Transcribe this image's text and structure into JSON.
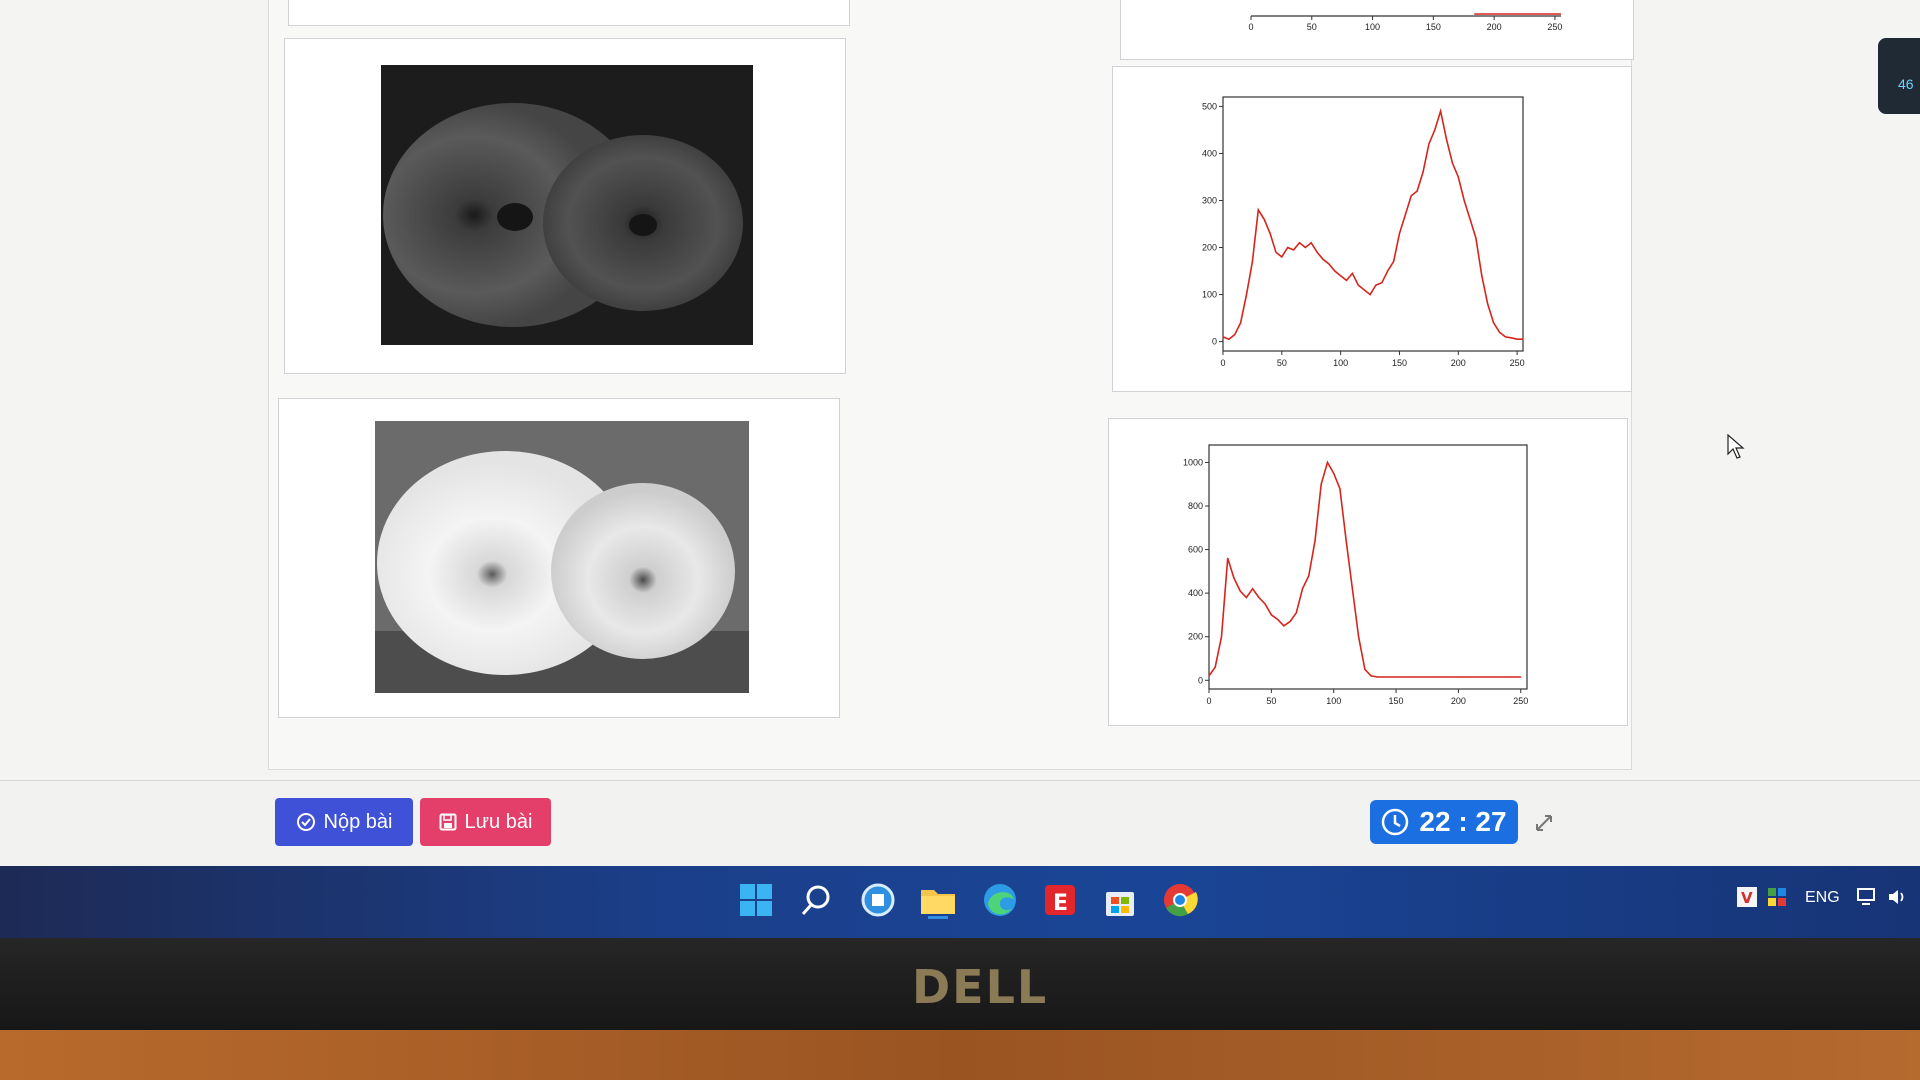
{
  "buttons": {
    "submit_label": "Nộp bài",
    "save_label": "Lưu bài"
  },
  "timer": {
    "text": "22 : 27"
  },
  "taskbar": {
    "language": "ENG"
  },
  "side_widget": {
    "text": "46"
  },
  "monitor": {
    "brand": "DELL"
  },
  "colors": {
    "submit": "#3f51d6",
    "save": "#e33f6a",
    "timer": "#1b6fe0",
    "series": "#d6251c"
  },
  "chart_data": [
    {
      "type": "line",
      "title": "",
      "xlabel": "",
      "ylabel": "",
      "xlim": [
        0,
        255
      ],
      "ylim": [
        -20,
        520
      ],
      "xticks": [
        0,
        50,
        100,
        150,
        200,
        250
      ],
      "yticks": [
        0,
        100,
        200,
        300,
        400,
        500
      ],
      "grid": false,
      "series": [
        {
          "x": [
            0,
            5,
            10,
            15,
            20,
            25,
            30,
            35,
            40,
            45,
            50,
            55,
            60,
            65,
            70,
            75,
            80,
            85,
            90,
            95,
            100,
            105,
            110,
            115,
            120,
            125,
            130,
            135,
            140,
            145,
            150,
            155,
            160,
            165,
            170,
            175,
            180,
            185,
            190,
            195,
            200,
            205,
            210,
            215,
            220,
            225,
            230,
            235,
            240,
            245,
            250,
            255
          ],
          "y": [
            10,
            5,
            15,
            40,
            100,
            170,
            280,
            260,
            230,
            190,
            180,
            200,
            195,
            210,
            200,
            210,
            190,
            175,
            165,
            150,
            140,
            130,
            145,
            120,
            110,
            100,
            120,
            125,
            150,
            170,
            230,
            270,
            310,
            320,
            360,
            420,
            450,
            490,
            430,
            380,
            350,
            300,
            260,
            220,
            140,
            80,
            40,
            20,
            10,
            8,
            5,
            5
          ]
        }
      ]
    },
    {
      "type": "line",
      "title": "",
      "xlabel": "",
      "ylabel": "",
      "xlim": [
        0,
        255
      ],
      "ylim": [
        -40,
        1080
      ],
      "xticks": [
        0,
        50,
        100,
        150,
        200,
        250
      ],
      "yticks": [
        0,
        200,
        400,
        600,
        800,
        1000
      ],
      "grid": false,
      "series": [
        {
          "x": [
            0,
            5,
            10,
            15,
            20,
            25,
            30,
            35,
            40,
            45,
            50,
            55,
            60,
            65,
            70,
            75,
            80,
            85,
            90,
            95,
            100,
            105,
            110,
            115,
            120,
            125,
            130,
            135,
            140,
            150,
            160,
            170,
            180,
            190,
            200,
            210,
            220,
            230,
            240,
            245,
            250
          ],
          "y": [
            20,
            60,
            200,
            560,
            470,
            410,
            380,
            420,
            380,
            350,
            300,
            280,
            250,
            270,
            310,
            420,
            480,
            640,
            900,
            1000,
            950,
            880,
            640,
            420,
            200,
            50,
            20,
            15,
            15,
            15,
            15,
            15,
            15,
            15,
            15,
            15,
            15,
            15,
            15,
            15,
            15
          ]
        }
      ]
    },
    {
      "type": "line",
      "title": "",
      "xlabel": "",
      "ylabel": "",
      "xlim": [
        0,
        255
      ],
      "xticks": [
        0,
        50,
        100,
        150,
        200,
        250
      ],
      "grid": false
    }
  ]
}
